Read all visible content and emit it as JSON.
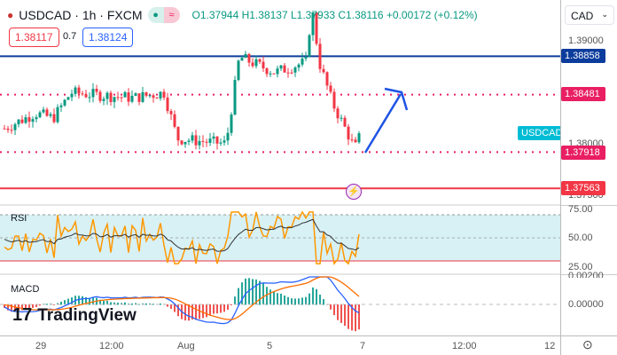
{
  "header": {
    "symbol": "USDCAD",
    "interval": "1h",
    "exchange": "FXCM",
    "open": "O1.37944",
    "high": "H1.38137",
    "low": "L1.37933",
    "close": "C1.38116",
    "change": "+0.00172 (+0.12%)"
  },
  "quote": {
    "bid": "1.38117",
    "spread": "0.7",
    "ask": "1.38124"
  },
  "currency": "CAD",
  "price_ticks": [
    "1.39000",
    "1.38000",
    "1.37500"
  ],
  "levels": [
    {
      "label": "1.38858",
      "color": "#0c3c9c"
    },
    {
      "label": "1.38481",
      "color": "#e91e63"
    },
    {
      "label": "1.37918",
      "color": "#e91e63"
    },
    {
      "label": "1.37563",
      "color": "#f23645"
    }
  ],
  "symbol_tag": "USDCAD",
  "rsi": {
    "label": "RSI",
    "ticks": [
      "75.00",
      "50.00",
      "25.00"
    ]
  },
  "macd": {
    "label": "MACD",
    "ticks": [
      "0.00200",
      "0.00000"
    ]
  },
  "time_labels": [
    "29",
    "12:00",
    "Aug",
    "5",
    "7",
    "12:00",
    "12"
  ],
  "logo": "TradingView",
  "colors": {
    "up": "#089981",
    "down": "#f23645",
    "rsi": "#ff9800",
    "macd": "#2962ff",
    "signal": "#ff6d00"
  },
  "price_anchors": [
    [
      1.3815,
      1.383,
      1.3825,
      1.385,
      1.3845,
      1.385,
      1.3805,
      1.38,
      1.3885,
      1.387,
      1.388,
      1.3935,
      1.388,
      1.384,
      1.3805,
      1.3795,
      1.3812
    ]
  ]
}
